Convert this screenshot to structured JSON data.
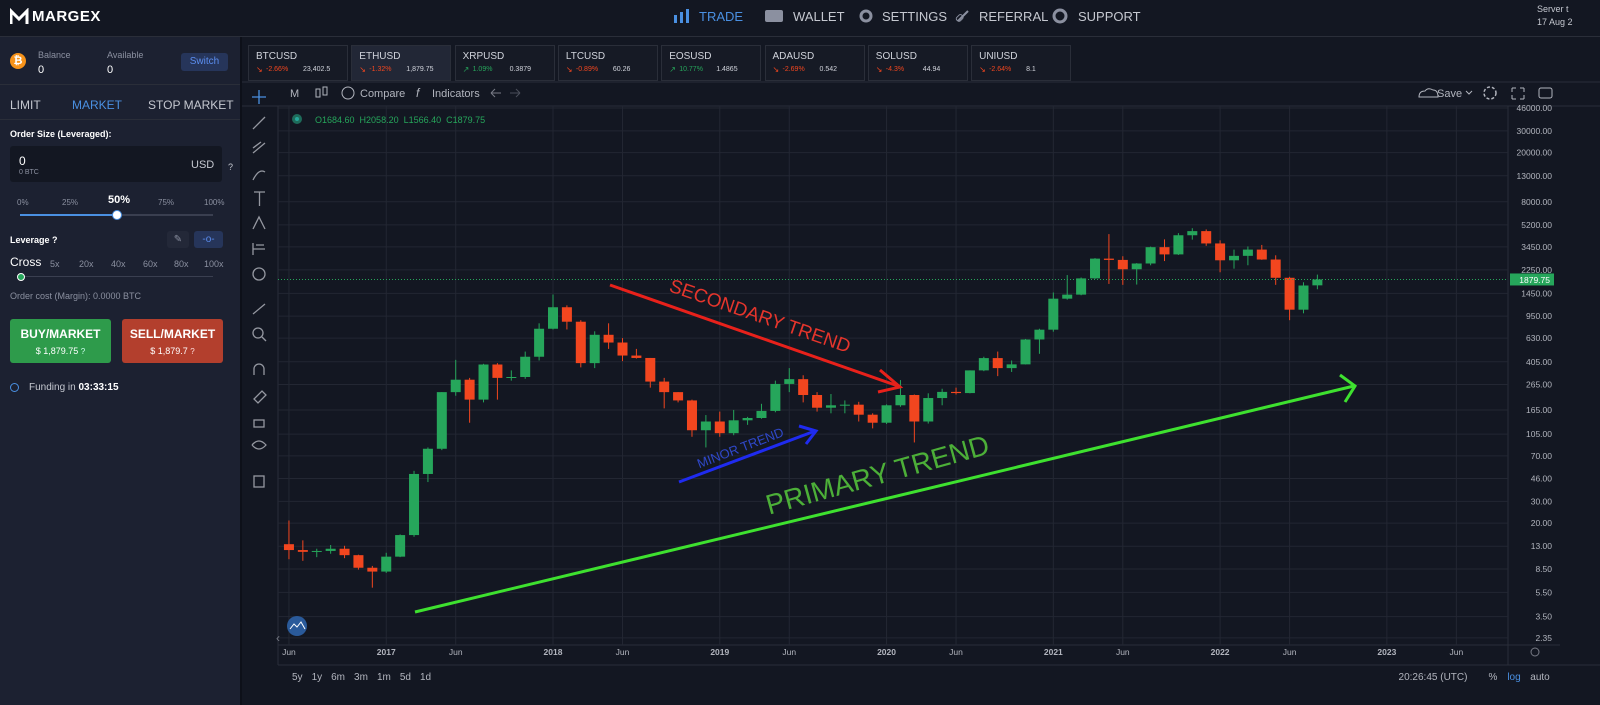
{
  "nav": {
    "logo": "MARGEX",
    "items": [
      "TRADE",
      "WALLET",
      "SETTINGS",
      "REFERRAL",
      "SUPPORT"
    ],
    "server": "Server t",
    "date": "17 Aug 2"
  },
  "sidebar": {
    "balance_label": "Balance",
    "balance": "0",
    "available_label": "Available",
    "available": "0",
    "switch": "Switch",
    "tabs": [
      "LIMIT",
      "MARKET",
      "STOP MARKET"
    ],
    "order_size_label": "Order Size (Leveraged):",
    "order_size": "0",
    "order_size_btc": "0 BTC",
    "currency": "USD",
    "help": "?",
    "percent_steps": [
      "0%",
      "25%",
      "50%",
      "75%",
      "100%"
    ],
    "leverage_label": "Leverage",
    "leverage_steps": [
      "Cross",
      "5x",
      "20x",
      "40x",
      "60x",
      "80x",
      "100x"
    ],
    "order_cost": "Order cost (Margin): 0.0000 BTC",
    "buy": {
      "label": "BUY/MARKET",
      "price": "$ 1,879.75"
    },
    "sell": {
      "label": "SELL/MARKET",
      "price": "$ 1,879.7"
    },
    "funding_label": "Funding in",
    "funding_time": "03:33:15"
  },
  "tickers": [
    {
      "symbol": "BTCUSD",
      "change": "-2.66%",
      "price": "23,402.5"
    },
    {
      "symbol": "ETHUSD",
      "change": "-1.32%",
      "price": "1,879.75"
    },
    {
      "symbol": "XRPUSD",
      "change": "1.09%",
      "price": "0.3879"
    },
    {
      "symbol": "LTCUSD",
      "change": "-0.89%",
      "price": "60.26"
    },
    {
      "symbol": "EOSUSD",
      "change": "10.77%",
      "price": "1.4865"
    },
    {
      "symbol": "ADAUSD",
      "change": "-2.69%",
      "price": "0.542"
    },
    {
      "symbol": "SOLUSD",
      "change": "-4.3%",
      "price": "44.94"
    },
    {
      "symbol": "UNIUSD",
      "change": "-2.64%",
      "price": "8.1"
    }
  ],
  "toolbar": {
    "interval": "M",
    "compare": "Compare",
    "indicators": "Indicators",
    "save": "Save"
  },
  "chart": {
    "type": "candlestick",
    "log_scale": true,
    "grid": true,
    "up_color": "#26a65b",
    "down_color": "#f2461f",
    "legend": [
      "O1684.60",
      "H2058.20",
      "L1566.40",
      "C1879.75"
    ],
    "ylim": [
      2.06,
      53400
    ],
    "yticks": [
      {
        "value": 46000,
        "label": "46000.00"
      },
      {
        "value": 30000,
        "label": "30000.00"
      },
      {
        "value": 20000,
        "label": "20000.00"
      },
      {
        "value": 13000,
        "label": "13000.00"
      },
      {
        "value": 8000,
        "label": "8000.00"
      },
      {
        "value": 5200,
        "label": "5200.00"
      },
      {
        "value": 3450,
        "label": "3450.00"
      },
      {
        "value": 2250,
        "label": "2250.00"
      },
      {
        "value": 1450,
        "label": "1450.00"
      },
      {
        "value": 950,
        "label": "950.00"
      },
      {
        "value": 630,
        "label": "630.00"
      },
      {
        "value": 405,
        "label": "405.00"
      },
      {
        "value": 265,
        "label": "265.00"
      },
      {
        "value": 165,
        "label": "165.00"
      },
      {
        "value": 105,
        "label": "105.00"
      },
      {
        "value": 70,
        "label": "70.00"
      },
      {
        "value": 46,
        "label": "46.00"
      },
      {
        "value": 30,
        "label": "30.00"
      },
      {
        "value": 20,
        "label": "20.00"
      },
      {
        "value": 13,
        "label": "13.00"
      },
      {
        "value": 8.5,
        "label": "8.50"
      },
      {
        "value": 5.5,
        "label": "5.50"
      },
      {
        "value": 3.5,
        "label": "3.50"
      },
      {
        "value": 2.35,
        "label": "2.35"
      }
    ],
    "last_price": {
      "value": 1879.75,
      "label": "1879.75"
    },
    "categories": [
      "Jun",
      null,
      null,
      null,
      null,
      null,
      null,
      "2017",
      null,
      null,
      null,
      null,
      "Jun",
      null,
      null,
      null,
      null,
      null,
      null,
      "2018",
      null,
      null,
      null,
      null,
      "Jun",
      null,
      null,
      null,
      null,
      null,
      null,
      "2019",
      null,
      null,
      null,
      null,
      "Jun",
      null,
      null,
      null,
      null,
      null,
      null,
      "2020",
      null,
      null,
      null,
      null,
      "Jun",
      null,
      null,
      null,
      null,
      null,
      null,
      "2021",
      null,
      null,
      null,
      null,
      "Jun",
      null,
      null,
      null,
      null,
      null,
      null,
      "2022",
      null,
      null,
      null,
      null,
      "Jun",
      null,
      null,
      null,
      null,
      null,
      null,
      "2023",
      null,
      null,
      null,
      null,
      "Jun",
      null,
      null,
      null
    ],
    "open": [
      13.5,
      12.1,
      11.7,
      11.9,
      12.4,
      11,
      8.7,
      8.1,
      10.7,
      16,
      50,
      80,
      230,
      290,
      200,
      385,
      300,
      305,
      445,
      750,
      1120,
      855,
      395,
      670,
      580,
      455,
      435,
      280,
      230,
      197,
      113,
      133,
      107,
      136,
      142,
      162,
      268,
      293,
      218,
      172,
      180,
      182,
      151,
      130,
      180,
      218,
      133,
      206,
      231,
      226,
      345,
      434,
      360,
      386,
      614,
      737,
      1314,
      1417,
      1918,
      2773,
      2707,
      2275,
      2532,
      3433,
      3000,
      4288,
      4631,
      3680,
      2688,
      2920,
      3282,
      2727,
      1940,
      1070,
      1684.6,
      null,
      null,
      null,
      null,
      null,
      null,
      null,
      null,
      null,
      null,
      null,
      null,
      null
    ],
    "high": [
      21,
      14.5,
      12.4,
      13.3,
      13.1,
      11.1,
      9,
      11.5,
      16.2,
      53,
      82,
      230,
      420,
      300,
      390,
      395,
      345,
      490,
      830,
      1420,
      1160,
      880,
      715,
      830,
      630,
      515,
      435,
      300,
      230,
      200,
      150,
      160,
      165,
      145,
      185,
      285,
      360,
      315,
      230,
      222,
      197,
      192,
      155,
      183,
      288,
      220,
      225,
      245,
      250,
      345,
      445,
      490,
      415,
      620,
      750,
      1475,
      2040,
      1950,
      2800,
      4380,
      2900,
      2550,
      3470,
      3970,
      4460,
      4890,
      4780,
      3900,
      3280,
      3480,
      3580,
      2950,
      1975,
      1785,
      2058.2,
      null,
      null,
      null,
      null,
      null,
      null,
      null,
      null,
      null,
      null,
      null,
      null,
      null
    ],
    "low": [
      10.2,
      9.9,
      10.6,
      11.3,
      10.4,
      8.4,
      6,
      7.9,
      10.6,
      15.5,
      43,
      78,
      215,
      130,
      190,
      200,
      285,
      295,
      415,
      740,
      740,
      365,
      360,
      515,
      410,
      430,
      250,
      170,
      190,
      100,
      82,
      100,
      103,
      125,
      140,
      158,
      230,
      190,
      160,
      155,
      155,
      133,
      117,
      127,
      175,
      90,
      128,
      180,
      220,
      225,
      340,
      310,
      335,
      385,
      470,
      710,
      1290,
      1400,
      1900,
      1730,
      1700,
      1710,
      2450,
      2650,
      2970,
      3950,
      3520,
      2150,
      2300,
      2450,
      2710,
      1700,
      880,
      1000,
      1566.4,
      null,
      null,
      null,
      null,
      null,
      null,
      null,
      null,
      null,
      null,
      null,
      null,
      null
    ],
    "close": [
      12.1,
      11.7,
      11.9,
      12.4,
      11,
      8.7,
      8.1,
      10.7,
      16,
      50,
      80,
      230,
      290,
      200,
      385,
      300,
      305,
      445,
      750,
      1120,
      855,
      395,
      670,
      580,
      455,
      435,
      280,
      230,
      197,
      113,
      133,
      107,
      136,
      142,
      162,
      268,
      293,
      218,
      172,
      180,
      182,
      151,
      130,
      180,
      218,
      133,
      206,
      231,
      226,
      345,
      434,
      360,
      386,
      614,
      737,
      1314,
      1417,
      1918,
      2773,
      2707,
      2275,
      2532,
      3433,
      3000,
      4288,
      4631,
      3680,
      2688,
      2920,
      3282,
      2727,
      1940,
      1070,
      1680,
      1879.75,
      null,
      null,
      null,
      null,
      null,
      null,
      null,
      null,
      null,
      null,
      null,
      null,
      null
    ],
    "annotations": [
      "SECONDARY TREND",
      "MINOR TREND",
      "PRIMARY TREND"
    ],
    "time": "20:26:45 (UTC)",
    "scale_buttons": [
      "%",
      "log",
      "auto"
    ],
    "timeframes": [
      "5y",
      "1y",
      "6m",
      "3m",
      "1m",
      "5d",
      "1d"
    ]
  }
}
